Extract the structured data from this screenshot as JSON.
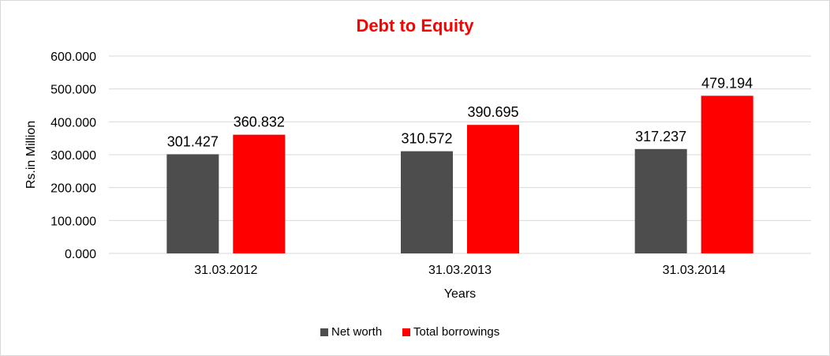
{
  "chart_data": {
    "type": "bar",
    "title": "Debt to Equity",
    "xlabel": "Years",
    "ylabel": "Rs.in Million",
    "categories": [
      "31.03.2012",
      "31.03.2013",
      "31.03.2014"
    ],
    "series": [
      {
        "name": "Net worth",
        "values": [
          301.427,
          310.572,
          317.237
        ],
        "labels": [
          "301.427",
          "310.572",
          "317.237"
        ],
        "color": "#4d4d4d"
      },
      {
        "name": "Total borrowings",
        "values": [
          360.832,
          390.695,
          479.194
        ],
        "labels": [
          "360.832",
          "390.695",
          "479.194"
        ],
        "color": "#ff0000"
      }
    ],
    "ylim": [
      0,
      600
    ],
    "yticks": [
      0,
      100,
      200,
      300,
      400,
      500,
      600
    ],
    "ytick_labels": [
      "0.000",
      "100.000",
      "200.000",
      "300.000",
      "400.000",
      "500.000",
      "600.000"
    ],
    "grid": true,
    "legend_position": "bottom",
    "title_color": "#ff0000",
    "gridline_color": "#d9d9d9"
  }
}
